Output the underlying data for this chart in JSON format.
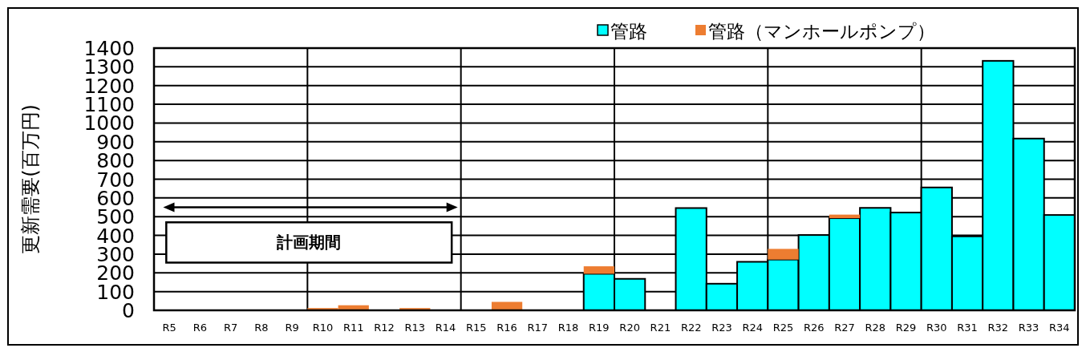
{
  "chart_data": {
    "type": "bar",
    "stacked": true,
    "categories": [
      "R5",
      "R6",
      "R7",
      "R8",
      "R9",
      "R10",
      "R11",
      "R12",
      "R13",
      "R14",
      "R15",
      "R16",
      "R17",
      "R18",
      "R19",
      "R20",
      "R21",
      "R22",
      "R23",
      "R24",
      "R25",
      "R26",
      "R27",
      "R28",
      "R29",
      "R30",
      "R31",
      "R32",
      "R33",
      "R34"
    ],
    "series": [
      {
        "name": "管路",
        "color": "#00ffff",
        "values": [
          0,
          0,
          0,
          0,
          0,
          0,
          0,
          0,
          0,
          0,
          0,
          0,
          0,
          0,
          195,
          168,
          0,
          546,
          142,
          259,
          271,
          402,
          492,
          547,
          522,
          656,
          395,
          1332,
          917,
          509
        ]
      },
      {
        "name": "管路（マンホールポンプ）",
        "color": "#ed7d31",
        "values": [
          0,
          0,
          0,
          0,
          0,
          12,
          27,
          0,
          12,
          0,
          0,
          45,
          0,
          0,
          40,
          0,
          0,
          0,
          0,
          0,
          57,
          0,
          19,
          0,
          0,
          0,
          0,
          0,
          0,
          0
        ]
      }
    ],
    "ylabel": "更新需要(百万円)",
    "ylim": [
      0,
      1400
    ],
    "yticks": [
      0,
      100,
      200,
      300,
      400,
      500,
      600,
      700,
      800,
      900,
      1000,
      1100,
      1200,
      1300,
      1400
    ],
    "grid": true,
    "legend": "top right",
    "annotations": [
      "計画期間"
    ]
  }
}
